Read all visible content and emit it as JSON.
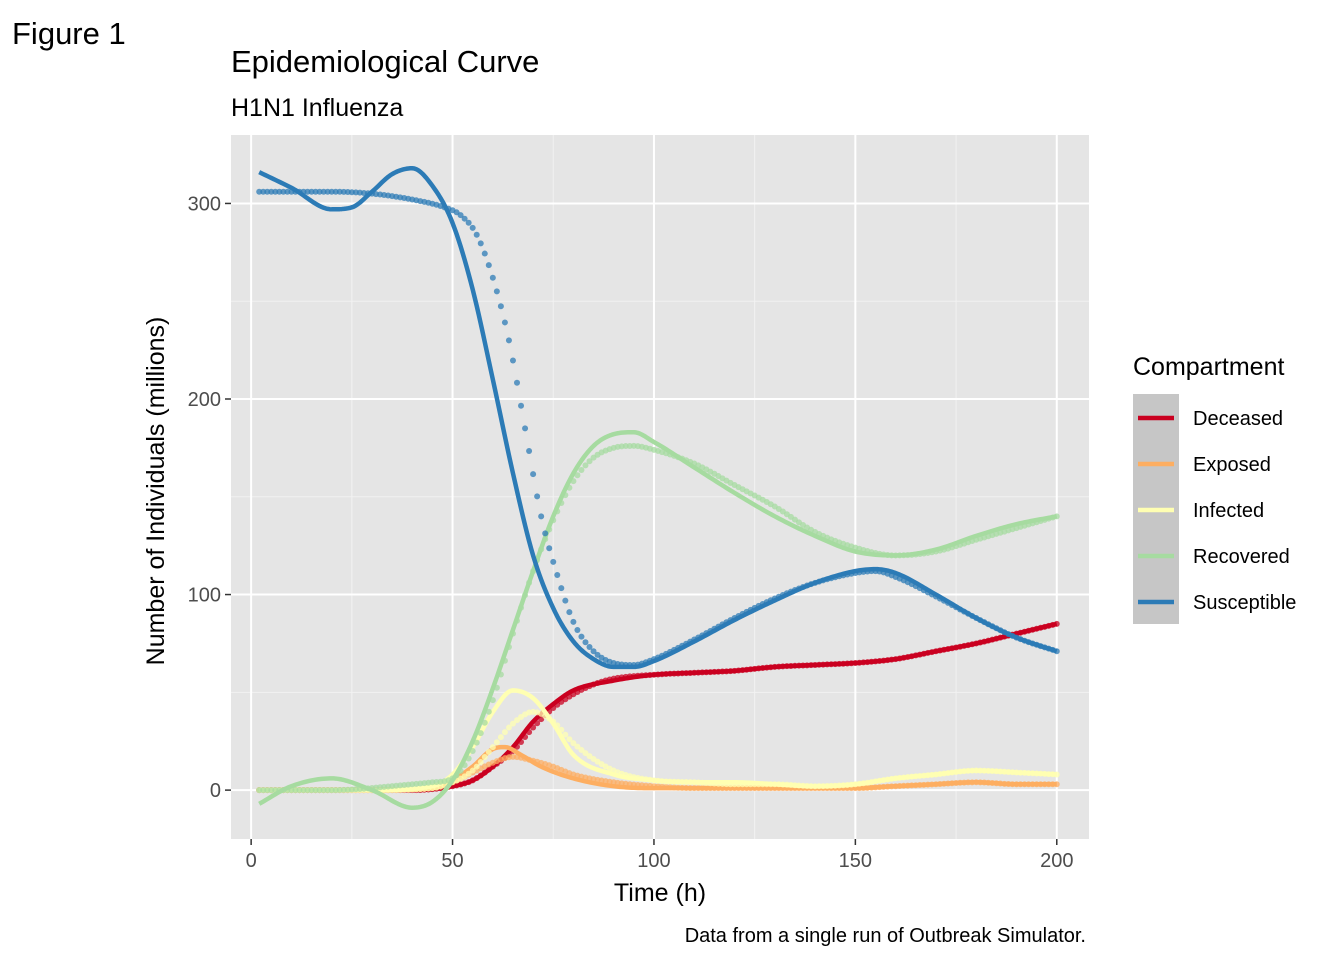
{
  "figure_label": "Figure 1",
  "chart_data": {
    "type": "line",
    "title": "Epidemiological Curve",
    "subtitle": "H1N1 Influenza",
    "xlabel": "Time (h)",
    "ylabel": "Number of Individuals (millions)",
    "caption": "Data from a single run of Outbreak Simulator.",
    "xlim": [
      -5,
      208
    ],
    "ylim": [
      -25,
      335
    ],
    "x_ticks": [
      0,
      50,
      100,
      150,
      200
    ],
    "y_ticks": [
      0,
      100,
      200,
      300
    ],
    "grid": true,
    "background": "#e5e5e5",
    "legend": {
      "title": "Compartment",
      "position": "right"
    },
    "series": [
      {
        "name": "Deceased",
        "color": "#ca0020",
        "smooth": [
          [
            2,
            0
          ],
          [
            20,
            0
          ],
          [
            40,
            0
          ],
          [
            50,
            2
          ],
          [
            55,
            5
          ],
          [
            60,
            12
          ],
          [
            65,
            22
          ],
          [
            70,
            35
          ],
          [
            75,
            44
          ],
          [
            80,
            51
          ],
          [
            90,
            56
          ],
          [
            100,
            59
          ],
          [
            110,
            60
          ],
          [
            120,
            61
          ],
          [
            130,
            63
          ],
          [
            140,
            64
          ],
          [
            150,
            65
          ],
          [
            160,
            67
          ],
          [
            170,
            71
          ],
          [
            180,
            75
          ],
          [
            190,
            80
          ],
          [
            200,
            85
          ]
        ],
        "observed": [
          [
            2,
            0
          ],
          [
            20,
            0
          ],
          [
            40,
            0
          ],
          [
            50,
            2
          ],
          [
            55,
            5
          ],
          [
            60,
            12
          ],
          [
            65,
            20
          ],
          [
            70,
            32
          ],
          [
            75,
            42
          ],
          [
            80,
            49
          ],
          [
            85,
            54
          ],
          [
            90,
            57
          ],
          [
            100,
            59
          ],
          [
            110,
            60
          ],
          [
            120,
            61
          ],
          [
            130,
            63
          ],
          [
            140,
            64
          ],
          [
            150,
            65
          ],
          [
            160,
            67
          ],
          [
            170,
            71
          ],
          [
            180,
            75
          ],
          [
            190,
            80
          ],
          [
            200,
            85
          ]
        ]
      },
      {
        "name": "Exposed",
        "color": "#fdae61",
        "smooth": [
          [
            2,
            0
          ],
          [
            30,
            0
          ],
          [
            45,
            1
          ],
          [
            50,
            5
          ],
          [
            55,
            12
          ],
          [
            60,
            21
          ],
          [
            63,
            22
          ],
          [
            67,
            18
          ],
          [
            72,
            12
          ],
          [
            80,
            6
          ],
          [
            90,
            2
          ],
          [
            100,
            1
          ],
          [
            110,
            1
          ],
          [
            120,
            1
          ],
          [
            130,
            1
          ],
          [
            140,
            1
          ],
          [
            150,
            1
          ],
          [
            160,
            2
          ],
          [
            170,
            3
          ],
          [
            180,
            4
          ],
          [
            190,
            3
          ],
          [
            200,
            3
          ]
        ],
        "observed": [
          [
            2,
            0
          ],
          [
            30,
            0
          ],
          [
            45,
            1
          ],
          [
            50,
            4
          ],
          [
            55,
            9
          ],
          [
            60,
            14
          ],
          [
            65,
            17
          ],
          [
            70,
            15
          ],
          [
            75,
            12
          ],
          [
            80,
            8
          ],
          [
            90,
            4
          ],
          [
            100,
            2
          ],
          [
            110,
            1
          ],
          [
            120,
            1
          ],
          [
            130,
            1
          ],
          [
            140,
            1
          ],
          [
            150,
            1
          ],
          [
            160,
            2
          ],
          [
            170,
            3
          ],
          [
            180,
            4
          ],
          [
            190,
            3
          ],
          [
            200,
            3
          ]
        ]
      },
      {
        "name": "Infected",
        "color": "#ffffb2",
        "smooth": [
          [
            2,
            0
          ],
          [
            30,
            0
          ],
          [
            45,
            2
          ],
          [
            50,
            8
          ],
          [
            55,
            22
          ],
          [
            60,
            40
          ],
          [
            65,
            51
          ],
          [
            70,
            47
          ],
          [
            75,
            34
          ],
          [
            80,
            18
          ],
          [
            90,
            8
          ],
          [
            100,
            5
          ],
          [
            110,
            4
          ],
          [
            120,
            4
          ],
          [
            130,
            3
          ],
          [
            140,
            2
          ],
          [
            150,
            3
          ],
          [
            160,
            6
          ],
          [
            170,
            8
          ],
          [
            180,
            10
          ],
          [
            190,
            9
          ],
          [
            200,
            8
          ]
        ],
        "observed": [
          [
            2,
            0
          ],
          [
            30,
            0
          ],
          [
            45,
            1
          ],
          [
            50,
            4
          ],
          [
            55,
            10
          ],
          [
            60,
            22
          ],
          [
            65,
            34
          ],
          [
            70,
            40
          ],
          [
            75,
            35
          ],
          [
            80,
            24
          ],
          [
            90,
            10
          ],
          [
            100,
            5
          ],
          [
            110,
            4
          ],
          [
            120,
            3
          ],
          [
            130,
            3
          ],
          [
            140,
            2
          ],
          [
            150,
            3
          ],
          [
            160,
            6
          ],
          [
            170,
            8
          ],
          [
            180,
            10
          ],
          [
            190,
            9
          ],
          [
            200,
            8
          ]
        ]
      },
      {
        "name": "Recovered",
        "color": "#a6dba0",
        "smooth": [
          [
            2,
            -7
          ],
          [
            10,
            2
          ],
          [
            20,
            6
          ],
          [
            30,
            0
          ],
          [
            40,
            -9
          ],
          [
            45,
            -6
          ],
          [
            50,
            5
          ],
          [
            55,
            25
          ],
          [
            60,
            52
          ],
          [
            65,
            82
          ],
          [
            70,
            112
          ],
          [
            75,
            140
          ],
          [
            80,
            162
          ],
          [
            85,
            176
          ],
          [
            90,
            182
          ],
          [
            95,
            183
          ],
          [
            100,
            178
          ],
          [
            110,
            165
          ],
          [
            120,
            152
          ],
          [
            130,
            140
          ],
          [
            140,
            130
          ],
          [
            150,
            122
          ],
          [
            160,
            120
          ],
          [
            170,
            123
          ],
          [
            180,
            130
          ],
          [
            190,
            136
          ],
          [
            200,
            140
          ]
        ],
        "observed": [
          [
            2,
            0
          ],
          [
            20,
            0
          ],
          [
            40,
            3
          ],
          [
            45,
            4
          ],
          [
            50,
            6
          ],
          [
            55,
            20
          ],
          [
            60,
            46
          ],
          [
            65,
            80
          ],
          [
            70,
            112
          ],
          [
            75,
            138
          ],
          [
            80,
            158
          ],
          [
            85,
            170
          ],
          [
            90,
            175
          ],
          [
            95,
            176
          ],
          [
            100,
            174
          ],
          [
            110,
            167
          ],
          [
            120,
            156
          ],
          [
            130,
            145
          ],
          [
            140,
            132
          ],
          [
            150,
            124
          ],
          [
            160,
            120
          ],
          [
            170,
            122
          ],
          [
            180,
            128
          ],
          [
            190,
            134
          ],
          [
            200,
            140
          ]
        ]
      },
      {
        "name": "Susceptible",
        "color": "#2c7bb6",
        "smooth": [
          [
            2,
            316
          ],
          [
            10,
            308
          ],
          [
            20,
            297
          ],
          [
            25,
            298
          ],
          [
            30,
            306
          ],
          [
            35,
            315
          ],
          [
            40,
            318
          ],
          [
            45,
            309
          ],
          [
            50,
            290
          ],
          [
            55,
            256
          ],
          [
            60,
            210
          ],
          [
            65,
            162
          ],
          [
            70,
            120
          ],
          [
            75,
            93
          ],
          [
            80,
            76
          ],
          [
            85,
            67
          ],
          [
            90,
            63
          ],
          [
            95,
            63
          ],
          [
            100,
            66
          ],
          [
            110,
            76
          ],
          [
            120,
            87
          ],
          [
            130,
            97
          ],
          [
            140,
            106
          ],
          [
            150,
            112
          ],
          [
            155,
            113
          ],
          [
            160,
            111
          ],
          [
            170,
            100
          ],
          [
            180,
            88
          ],
          [
            190,
            78
          ],
          [
            200,
            71
          ]
        ],
        "observed": [
          [
            2,
            306
          ],
          [
            20,
            306
          ],
          [
            30,
            305
          ],
          [
            40,
            302
          ],
          [
            48,
            298
          ],
          [
            52,
            294
          ],
          [
            56,
            284
          ],
          [
            60,
            262
          ],
          [
            64,
            230
          ],
          [
            68,
            185
          ],
          [
            72,
            140
          ],
          [
            76,
            110
          ],
          [
            80,
            86
          ],
          [
            85,
            71
          ],
          [
            90,
            65
          ],
          [
            95,
            64
          ],
          [
            100,
            67
          ],
          [
            110,
            77
          ],
          [
            120,
            88
          ],
          [
            130,
            98
          ],
          [
            140,
            106
          ],
          [
            150,
            111
          ],
          [
            155,
            112
          ],
          [
            160,
            109
          ],
          [
            170,
            99
          ],
          [
            180,
            88
          ],
          [
            190,
            78
          ],
          [
            200,
            71
          ]
        ]
      }
    ]
  }
}
